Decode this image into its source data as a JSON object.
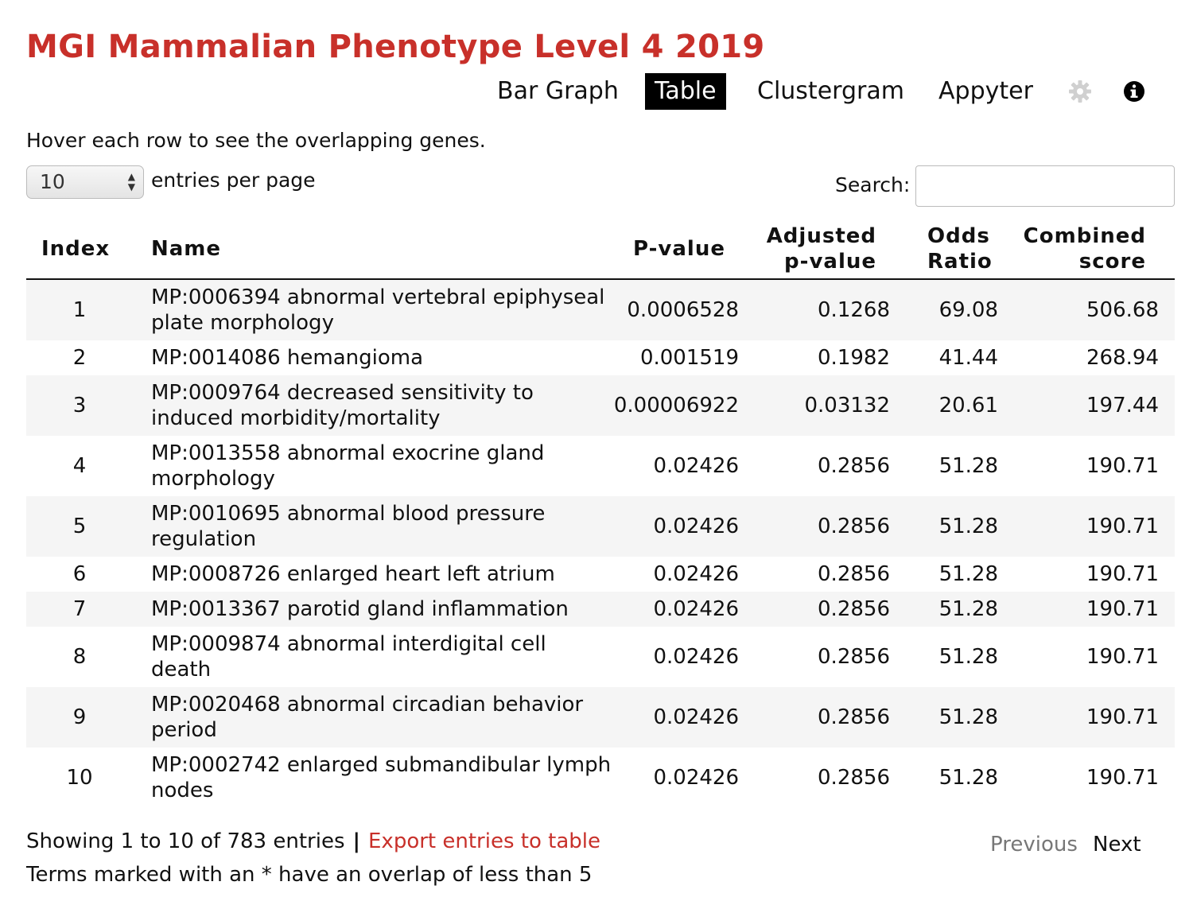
{
  "title": "MGI Mammalian Phenotype Level 4 2019",
  "nav": {
    "bar_graph": "Bar Graph",
    "table": "Table",
    "clustergram": "Clustergram",
    "appyter": "Appyter",
    "settings_icon": "gear-icon",
    "info_icon": "info-icon"
  },
  "hint": "Hover each row to see the overlapping genes.",
  "entries_select": {
    "value": "10",
    "suffix": "entries per page"
  },
  "search": {
    "label": "Search:",
    "value": ""
  },
  "columns": {
    "index": "Index",
    "name": "Name",
    "pvalue": "P-value",
    "adjusted_line1": "Adjusted",
    "adjusted_line2": "p-value",
    "odds_line1": "Odds",
    "odds_line2": "Ratio",
    "combined_line1": "Combined",
    "combined_line2": "score"
  },
  "rows": [
    {
      "index": "1",
      "name": "MP:0006394 abnormal vertebral epiphyseal plate morphology",
      "pvalue": "0.0006528",
      "adjusted": "0.1268",
      "odds": "69.08",
      "combined": "506.68"
    },
    {
      "index": "2",
      "name": "MP:0014086 hemangioma",
      "pvalue": "0.001519",
      "adjusted": "0.1982",
      "odds": "41.44",
      "combined": "268.94"
    },
    {
      "index": "3",
      "name": "MP:0009764 decreased sensitivity to induced morbidity/mortality",
      "pvalue": "0.00006922",
      "adjusted": "0.03132",
      "odds": "20.61",
      "combined": "197.44"
    },
    {
      "index": "4",
      "name": "MP:0013558 abnormal exocrine gland morphology",
      "pvalue": "0.02426",
      "adjusted": "0.2856",
      "odds": "51.28",
      "combined": "190.71"
    },
    {
      "index": "5",
      "name": "MP:0010695 abnormal blood pressure regulation",
      "pvalue": "0.02426",
      "adjusted": "0.2856",
      "odds": "51.28",
      "combined": "190.71"
    },
    {
      "index": "6",
      "name": "MP:0008726 enlarged heart left atrium",
      "pvalue": "0.02426",
      "adjusted": "0.2856",
      "odds": "51.28",
      "combined": "190.71"
    },
    {
      "index": "7",
      "name": "MP:0013367 parotid gland inflammation",
      "pvalue": "0.02426",
      "adjusted": "0.2856",
      "odds": "51.28",
      "combined": "190.71"
    },
    {
      "index": "8",
      "name": "MP:0009874 abnormal interdigital cell death",
      "pvalue": "0.02426",
      "adjusted": "0.2856",
      "odds": "51.28",
      "combined": "190.71"
    },
    {
      "index": "9",
      "name": "MP:0020468 abnormal circadian behavior period",
      "pvalue": "0.02426",
      "adjusted": "0.2856",
      "odds": "51.28",
      "combined": "190.71"
    },
    {
      "index": "10",
      "name": "MP:0002742 enlarged submandibular lymph nodes",
      "pvalue": "0.02426",
      "adjusted": "0.2856",
      "odds": "51.28",
      "combined": "190.71"
    }
  ],
  "footer": {
    "showing": "Showing 1 to 10 of 783 entries",
    "separator": "|",
    "export": "Export entries to table",
    "note": "Terms marked with an * have an overlap of less than 5",
    "previous": "Previous",
    "next": "Next"
  },
  "colors": {
    "accent": "#c8302a",
    "active_tab_bg": "#000000",
    "stripe": "#f5f5f5",
    "disabled": "#777777"
  }
}
